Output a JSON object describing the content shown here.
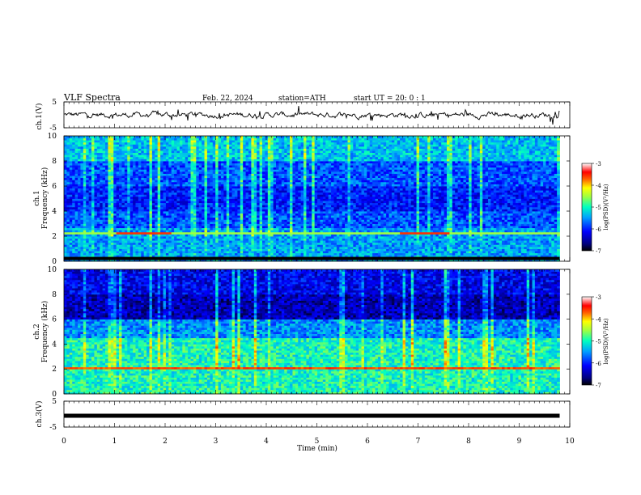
{
  "header": {
    "title": "VLF  Spectra",
    "date": "Feb. 22, 2024",
    "station": "station=ATH",
    "start_ut": "start  UT  =    20: 0   : 1"
  },
  "chart_data": [
    {
      "id": "ch1-waveform",
      "type": "line",
      "ylabel": "ch.1(V)",
      "ylim": [
        -5,
        5
      ],
      "yticks": [
        "5",
        "-5"
      ],
      "baseline": 0,
      "note_values": "noisy waveform around ~0 V with small spikes"
    },
    {
      "id": "ch1-spectrogram",
      "type": "heatmap",
      "ylabel": "ch.1\nFrequency (kHz)",
      "ylabel_line1": "ch.1",
      "ylabel_line2": "Frequency  (kHz)",
      "ylim": [
        0,
        10
      ],
      "yticks": [
        "0",
        "2",
        "4",
        "6",
        "8",
        "10"
      ],
      "colorbar": {
        "label": "log(PSD)(V²/Hz)",
        "ticks": [
          "-3",
          "-4",
          "-5",
          "-6",
          "-7"
        ],
        "range": [
          -7,
          -3
        ]
      },
      "features": [
        "broadband impulsive sferics extending to 10 kHz",
        "strong line near 2.2 kHz between 1-2 min and 6.5-7.5 min"
      ]
    },
    {
      "id": "ch2-spectrogram",
      "type": "heatmap",
      "ylabel": "ch.2\nFrequency (kHz)",
      "ylabel_line1": "ch.2",
      "ylabel_line2": "Frequency  (kHz)",
      "ylim": [
        0,
        10
      ],
      "yticks": [
        "0",
        "2",
        "4",
        "6",
        "8",
        "10"
      ],
      "colorbar": {
        "label": "log(PSD)(V²/Hz)",
        "ticks": [
          "-3",
          "-4",
          "-5",
          "-6",
          "-7"
        ],
        "range": [
          -7,
          -3
        ]
      },
      "features": [
        "broadband impulsive sferics",
        "strong line near 2 kHz through whole record"
      ]
    },
    {
      "id": "ch3-waveform",
      "type": "line",
      "ylabel": "ch.3(V)",
      "ylim": [
        -5,
        5
      ],
      "yticks": [
        "5",
        "-5"
      ],
      "baseline": 0
    }
  ],
  "xaxis": {
    "label": "Time  (min)",
    "ticks": [
      "0",
      "1",
      "2",
      "3",
      "4",
      "5",
      "6",
      "7",
      "8",
      "9",
      "10"
    ],
    "range": [
      0,
      10
    ],
    "data_end": 9.8
  },
  "colors": {
    "jet": [
      "#000000",
      "#00008f",
      "#0000ff",
      "#0080ff",
      "#00ffff",
      "#80ff80",
      "#ffff00",
      "#ff8000",
      "#ff0000",
      "#ffffff"
    ]
  }
}
